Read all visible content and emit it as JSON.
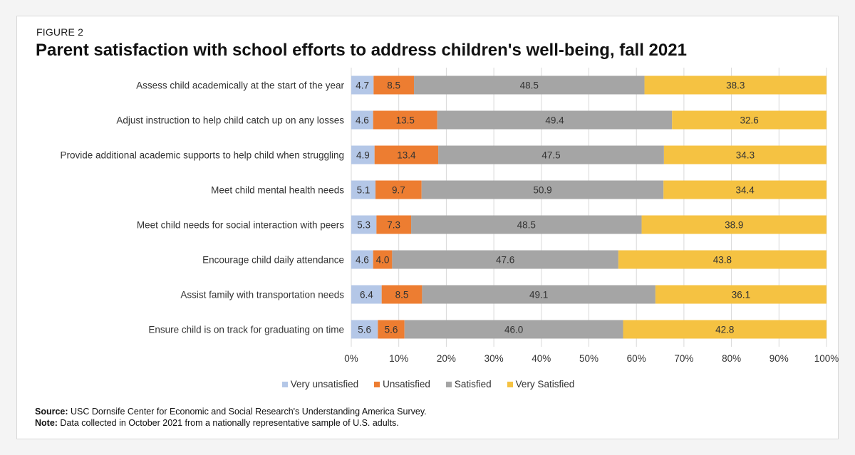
{
  "figure_label": "FIGURE 2",
  "chart_data": {
    "type": "bar",
    "orientation": "horizontal",
    "stacked": true,
    "title": "Parent satisfaction with school efforts to address children's well-being, fall 2021",
    "categories": [
      "Assess child academically at the start of the year",
      "Adjust instruction to help child catch up on any losses",
      "Provide additional academic supports to help child when struggling",
      "Meet child mental health needs",
      "Meet child needs for social interaction with peers",
      "Encourage child daily attendance",
      "Assist family with transportation needs",
      "Ensure child is on track for graduating on time"
    ],
    "series": [
      {
        "name": "Very unsatisfied",
        "color": "#b4c7e7",
        "values": [
          4.7,
          4.6,
          4.9,
          5.1,
          5.3,
          4.6,
          6.4,
          5.6
        ],
        "labels": [
          "4.7",
          "4.6",
          "4.9",
          "5.1",
          "5.3",
          "4.6",
          "6.4",
          "5.6"
        ]
      },
      {
        "name": "Unsatisfied",
        "color": "#ed7d31",
        "values": [
          8.5,
          13.5,
          13.4,
          9.7,
          7.3,
          4.0,
          8.5,
          5.6
        ],
        "labels": [
          "8.5",
          "13.5",
          "13.4",
          "9.7",
          "7.3",
          "4.0",
          "8.5",
          "5.6"
        ]
      },
      {
        "name": "Satisfied",
        "color": "#a5a5a5",
        "values": [
          48.5,
          49.4,
          47.5,
          50.9,
          48.5,
          47.6,
          49.1,
          46.0
        ],
        "labels": [
          "48.5",
          "49.4",
          "47.5",
          "50.9",
          "48.5",
          "47.6",
          "49.1",
          "46.0"
        ]
      },
      {
        "name": "Very Satisfied",
        "color": "#f5c242",
        "values": [
          38.3,
          32.6,
          34.3,
          34.4,
          38.9,
          43.8,
          36.1,
          42.8
        ],
        "labels": [
          "38.3",
          "32.6",
          "34.3",
          "34.4",
          "38.9",
          "43.8",
          "36.1",
          "42.8"
        ]
      }
    ],
    "xlim": [
      0,
      100
    ],
    "x_ticks": [
      "0%",
      "10%",
      "20%",
      "30%",
      "40%",
      "50%",
      "60%",
      "70%",
      "80%",
      "90%",
      "100%"
    ],
    "gridlines": true,
    "legend_position": "bottom"
  },
  "notes": {
    "source_label": "Source:",
    "source_text": " USC Dornsife Center for Economic and Social Research's Understanding America Survey.",
    "note_label": "Note:",
    "note_text": " Data collected in October 2021 from a nationally representative sample of U.S. adults."
  }
}
